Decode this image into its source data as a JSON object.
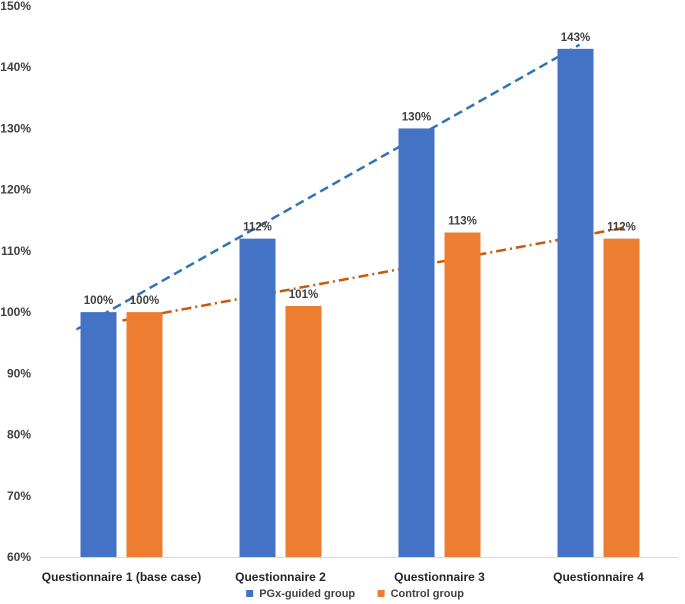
{
  "chart_data": {
    "type": "bar",
    "title": "",
    "xlabel": "",
    "ylabel": "",
    "ylim": [
      60,
      150
    ],
    "ytick_step": 10,
    "y_tick_suffix": "%",
    "grid": false,
    "legend_position": "bottom",
    "categories": [
      "Questionnaire 1 (base case)",
      "Questionnaire 2",
      "Questionnaire 3",
      "Questionnaire 4"
    ],
    "series": [
      {
        "name": "PGx-guided group",
        "color": "#4472C4",
        "values": [
          100,
          112,
          130,
          143
        ],
        "labels": [
          "100%",
          "112%",
          "130%",
          "143%"
        ],
        "trendline": {
          "style": "dashed",
          "color": "#2E75B6"
        }
      },
      {
        "name": "Control group",
        "color": "#ED7D31",
        "values": [
          100,
          101,
          113,
          112
        ],
        "labels": [
          "100%",
          "101%",
          "113%",
          "112%"
        ],
        "trendline": {
          "style": "dash-dot",
          "color": "#C55A11"
        }
      }
    ]
  }
}
